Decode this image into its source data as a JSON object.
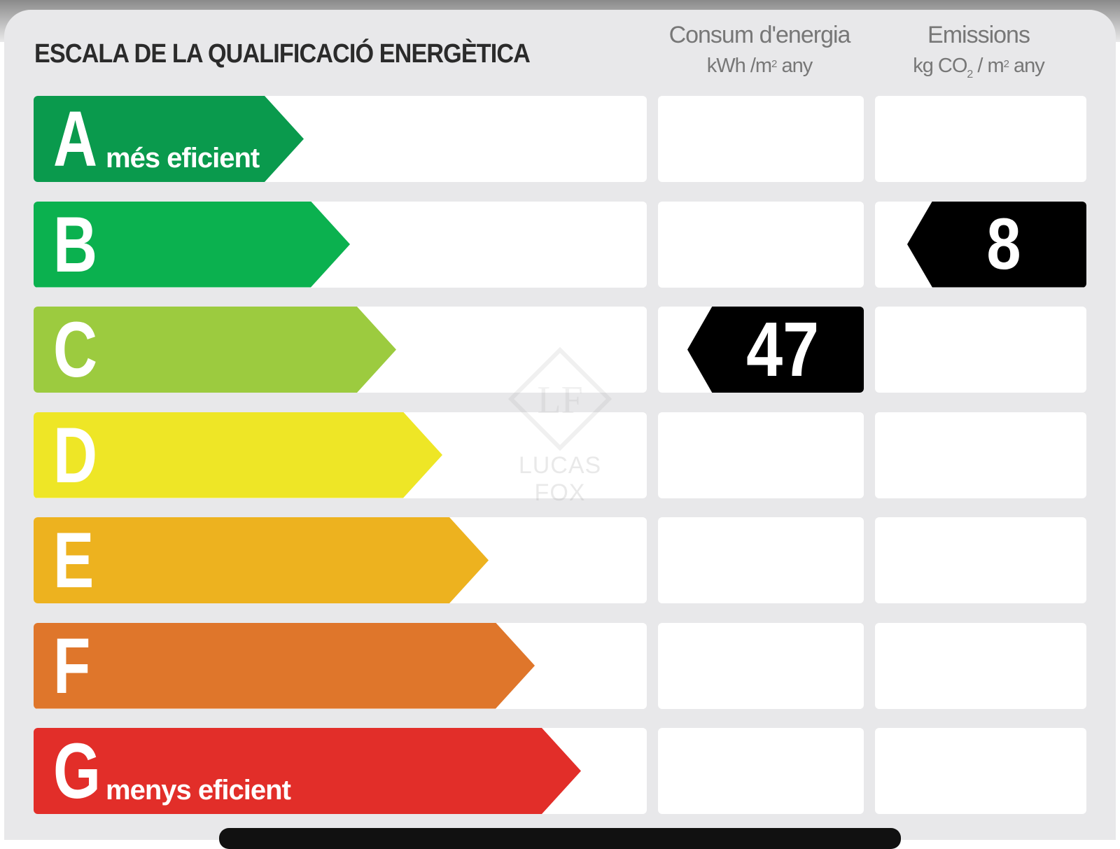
{
  "title": "ESCALA DE LA QUALIFICACIÓ ENERGÈTICA",
  "columns": {
    "energy": {
      "title": "Consum d'energia",
      "unit_pre": "kWh /m",
      "unit_sup": "2",
      "unit_post": " any"
    },
    "emissions": {
      "title": "Emissions",
      "unit_pre": "kg CO",
      "unit_sub": "2",
      "unit_mid": " / m",
      "unit_sup": "2",
      "unit_post": " any"
    }
  },
  "grades": [
    {
      "letter": "A",
      "caption": "més eficient",
      "color": "#0a9a4d"
    },
    {
      "letter": "B",
      "caption": "",
      "color": "#0bb14f"
    },
    {
      "letter": "C",
      "caption": "",
      "color": "#9ccb3f"
    },
    {
      "letter": "D",
      "caption": "",
      "color": "#eee626"
    },
    {
      "letter": "E",
      "caption": "",
      "color": "#edb21f"
    },
    {
      "letter": "F",
      "caption": "",
      "color": "#df762b"
    },
    {
      "letter": "G",
      "caption": "menys eficient",
      "color": "#e22e29"
    }
  ],
  "ratings": {
    "energy": {
      "grade": "C",
      "value": "47"
    },
    "emissions": {
      "grade": "B",
      "value": "8"
    }
  },
  "marker_color": "#000000",
  "watermark": {
    "initials": "LF",
    "brand": "LUCAS FOX"
  }
}
